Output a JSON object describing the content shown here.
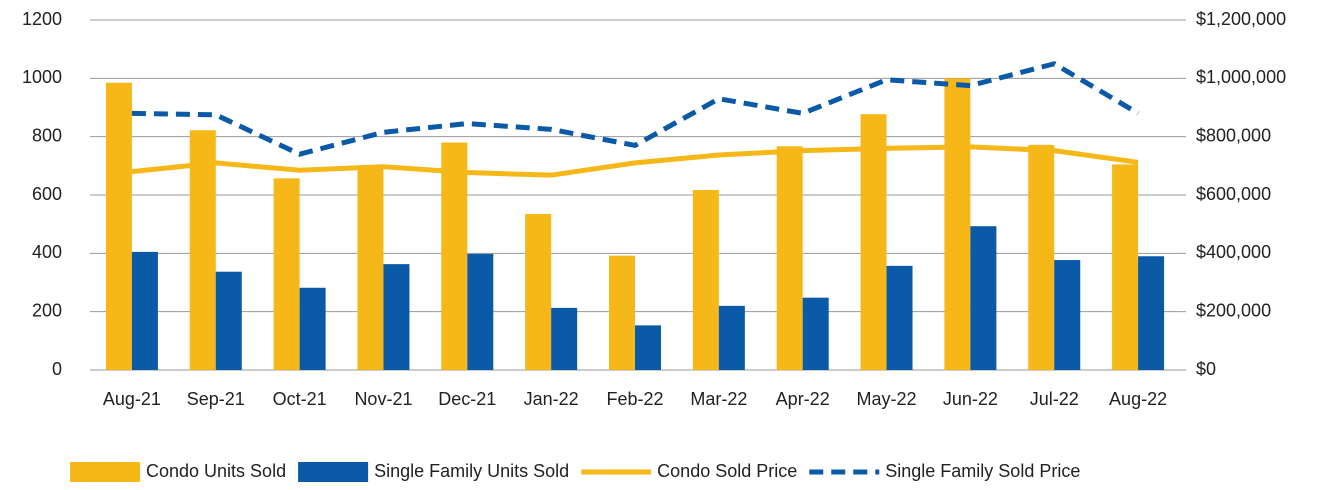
{
  "chart_data": {
    "type": "bar",
    "categories": [
      "Aug-21",
      "Sep-21",
      "Oct-21",
      "Nov-21",
      "Dec-21",
      "Jan-22",
      "Feb-22",
      "Mar-22",
      "Apr-22",
      "May-22",
      "Jun-22",
      "Jul-22",
      "Aug-22"
    ],
    "series": [
      {
        "name": "Condo Units Sold",
        "type": "bar",
        "color": "#f5b818",
        "values": [
          985,
          822,
          657,
          700,
          780,
          535,
          392,
          617,
          767,
          877,
          1000,
          772,
          705
        ]
      },
      {
        "name": "Single Family Units Sold",
        "type": "bar",
        "color": "#0b5aa7",
        "values": [
          405,
          337,
          282,
          363,
          398,
          213,
          153,
          220,
          248,
          357,
          493,
          377,
          390
        ]
      },
      {
        "name": "Condo Sold Price",
        "type": "line",
        "axis": "y2",
        "color": "#f5b818",
        "values": [
          680000,
          710000,
          685000,
          697000,
          677000,
          668000,
          710000,
          737000,
          752000,
          760000,
          765000,
          752000,
          712000
        ]
      },
      {
        "name": "Single Family Sold Price",
        "type": "line",
        "dashed": true,
        "axis": "y2",
        "color": "#0b5aa7",
        "values": [
          880000,
          875000,
          740000,
          815000,
          845000,
          825000,
          770000,
          930000,
          880000,
          995000,
          975000,
          1050000,
          880000
        ]
      }
    ],
    "ylim": [
      0,
      1200
    ],
    "yticks": [
      0,
      200,
      400,
      600,
      800,
      1000,
      1200
    ],
    "y2lim": [
      0,
      1200000
    ],
    "y2ticks": [
      {
        "value": 0,
        "label": "$0"
      },
      {
        "value": 200000,
        "label": "$200,000"
      },
      {
        "value": 400000,
        "label": "$400,000"
      },
      {
        "value": 600000,
        "label": "$600,000"
      },
      {
        "value": 800000,
        "label": "$800,000"
      },
      {
        "value": 1000000,
        "label": "$1,000,000"
      },
      {
        "value": 1200000,
        "label": "$1,200,000"
      }
    ],
    "grid": true,
    "legend": "bottom"
  }
}
